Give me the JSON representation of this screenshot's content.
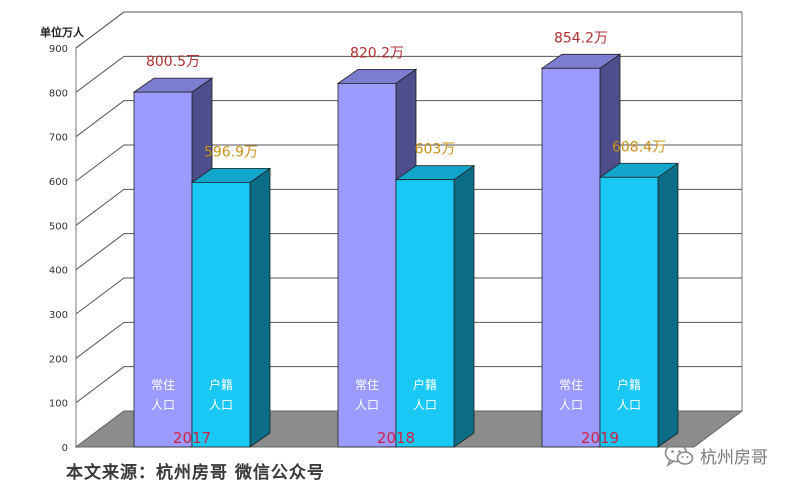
{
  "chart_data": {
    "type": "bar",
    "ylabel": "单位万人",
    "ylim": [
      0,
      900
    ],
    "yticks": [
      0,
      100,
      200,
      300,
      400,
      500,
      600,
      700,
      800,
      900
    ],
    "grid": true,
    "categories": [
      "2017",
      "2018",
      "2019"
    ],
    "series": [
      {
        "key": "resident",
        "inbar_label": "常住\n人口",
        "values": [
          800.5,
          820.2,
          854.2
        ],
        "value_labels": [
          "800.5万",
          "820.2万",
          "854.2万"
        ],
        "front_color": "#9b9bff",
        "side_color": "#4e4e8c",
        "top_color": "#7c7cd0",
        "label_color": "#b03030"
      },
      {
        "key": "registered",
        "inbar_label": "户籍\n人口",
        "values": [
          596.9,
          603,
          608.4
        ],
        "value_labels": [
          "596.9万",
          "603万",
          "608.4万"
        ],
        "front_color": "#1ac8f5",
        "side_color": "#0b6e86",
        "top_color": "#12a6cc",
        "label_color": "#c8901a"
      }
    ],
    "category_label_color": "#cc2244",
    "floor_color": "#8c8c8c"
  },
  "footer": {
    "source": "本文来源：杭州房哥 微信公众号",
    "watermark": "杭州房哥",
    "watermark_icon": "wechat-icon"
  }
}
